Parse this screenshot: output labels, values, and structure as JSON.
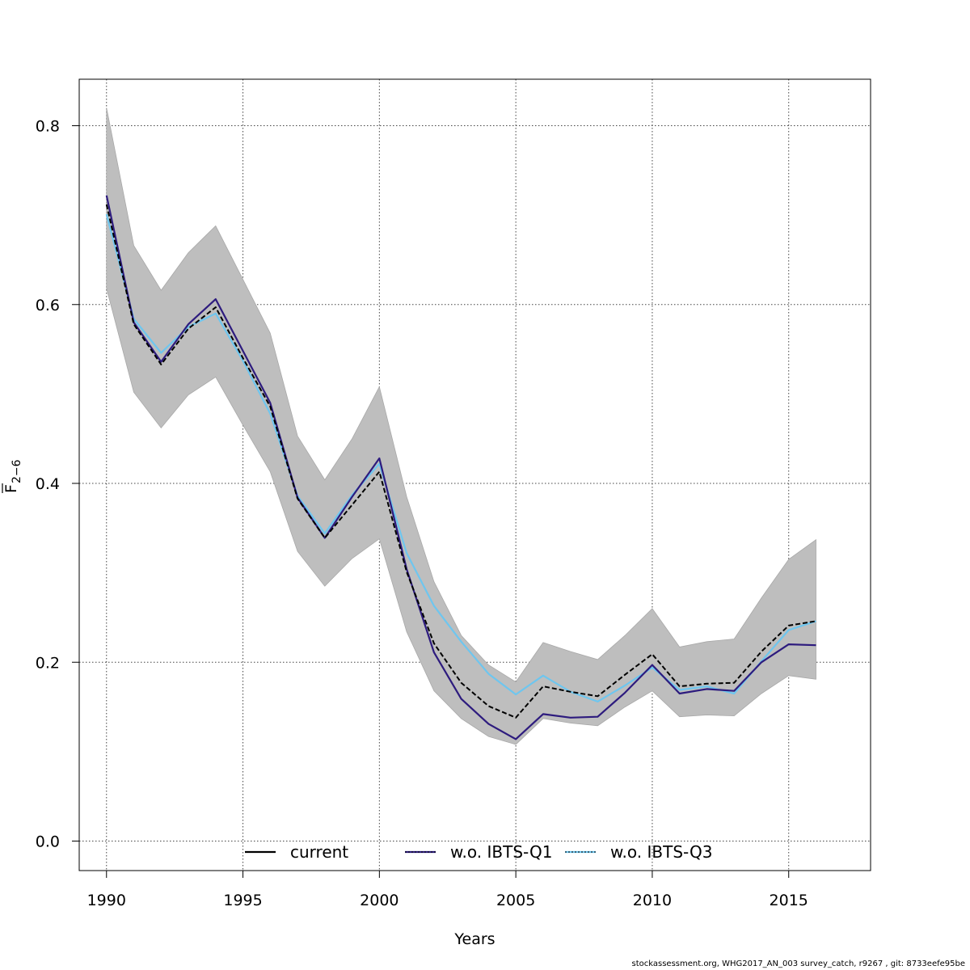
{
  "chart_data": {
    "type": "line",
    "title": "",
    "xlabel": "Years",
    "ylabel_main": "F",
    "ylabel_sub": "2−6",
    "xlim": [
      1989,
      2018
    ],
    "ylim": [
      -0.033,
      0.852
    ],
    "x_ticks": [
      "1990",
      "1995",
      "2000",
      "2005",
      "2010",
      "2015"
    ],
    "y_ticks": [
      "0.0",
      "0.2",
      "0.4",
      "0.6",
      "0.8"
    ],
    "grid": true,
    "legend_position": "bottom",
    "x": [
      1990,
      1991,
      1992,
      1993,
      1994,
      1995,
      1996,
      1997,
      1998,
      1999,
      2000,
      2001,
      2002,
      2003,
      2004,
      2005,
      2006,
      2007,
      2008,
      2009,
      2010,
      2011,
      2012,
      2013,
      2014,
      2015,
      2016
    ],
    "band": {
      "upper": [
        0.82,
        0.666,
        0.616,
        0.658,
        0.688,
        0.628,
        0.568,
        0.453,
        0.404,
        0.45,
        0.508,
        0.385,
        0.29,
        0.23,
        0.197,
        0.178,
        0.222,
        0.212,
        0.203,
        0.23,
        0.26,
        0.217,
        0.223,
        0.226,
        0.272,
        0.315,
        0.337
      ],
      "lower": [
        0.618,
        0.502,
        0.462,
        0.499,
        0.519,
        0.465,
        0.413,
        0.324,
        0.285,
        0.316,
        0.338,
        0.234,
        0.168,
        0.137,
        0.117,
        0.108,
        0.137,
        0.132,
        0.129,
        0.15,
        0.168,
        0.139,
        0.141,
        0.14,
        0.165,
        0.185,
        0.181
      ],
      "color": "#bebebe"
    },
    "series": [
      {
        "name": "current",
        "color": "#000000",
        "dashed": false,
        "values": [
          0.712,
          0.578,
          0.533,
          0.573,
          0.597,
          0.54,
          0.486,
          0.383,
          0.339,
          0.376,
          0.413,
          0.301,
          0.221,
          0.177,
          0.151,
          0.138,
          0.173,
          0.167,
          0.162,
          0.186,
          0.209,
          0.173,
          0.176,
          0.177,
          0.212,
          0.241,
          0.246
        ]
      },
      {
        "name": "w.o. IBTS-Q1",
        "color": "#2d1b7e",
        "dashed": true,
        "values": [
          0.722,
          0.58,
          0.536,
          0.578,
          0.606,
          0.548,
          0.49,
          0.384,
          0.339,
          0.385,
          0.428,
          0.304,
          0.211,
          0.159,
          0.131,
          0.114,
          0.142,
          0.138,
          0.139,
          0.166,
          0.197,
          0.165,
          0.17,
          0.168,
          0.2,
          0.22,
          0.219
        ]
      },
      {
        "name": "w.o. IBTS-Q3",
        "color": "#6ec6ef",
        "dashed": true,
        "values": [
          0.701,
          0.584,
          0.546,
          0.575,
          0.59,
          0.537,
          0.478,
          0.386,
          0.344,
          0.387,
          0.422,
          0.322,
          0.263,
          0.223,
          0.187,
          0.164,
          0.185,
          0.167,
          0.156,
          0.174,
          0.194,
          0.169,
          0.173,
          0.165,
          0.201,
          0.236,
          0.246
        ]
      }
    ]
  },
  "footer": "stockassessment.org, WHG2017_AN_003 survey_catch, r9267 , git: 8733eefe95be"
}
